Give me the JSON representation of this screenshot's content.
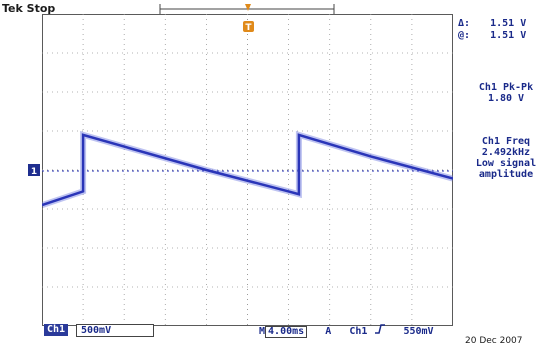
{
  "header": {
    "brand": "Tek",
    "run_state": "Stop"
  },
  "cursor_readout": {
    "delta_label": "Δ:",
    "delta_value": "1.51 V",
    "at_label": "@:",
    "at_value": "1.51 V"
  },
  "measurements": [
    {
      "label": "Ch1 Pk-Pk",
      "value": "1.80 V"
    },
    {
      "label": "Ch1 Freq",
      "value": "2.492kHz",
      "note": [
        "Low signal",
        "amplitude"
      ]
    }
  ],
  "channel": {
    "badge": "Ch1",
    "scale": "500mV",
    "marker": "1"
  },
  "timebase": {
    "prefix": "M",
    "value": "4.00ms",
    "trigger_prefix": "A",
    "trigger_source": "Ch1",
    "trigger_slope_icon": "rising-edge-icon",
    "trigger_level": "550mV"
  },
  "footer": {
    "date": "20 Dec 2007"
  },
  "trigger_marker": "T",
  "colors": {
    "trace": "#2a35b8",
    "graticule": "#9a9a9a",
    "text": "#1a2a8a"
  },
  "chart_data": {
    "type": "line",
    "series": [
      {
        "points": [
          {
            "t": 0.0,
            "v": -0.9
          },
          {
            "t": 1.0,
            "v": -0.55
          },
          {
            "t": 1.0,
            "v": 0.9
          },
          {
            "t": 2.0,
            "v": 0.6
          },
          {
            "t": 4.0,
            "v": 0.0
          },
          {
            "t": 6.0,
            "v": -0.55
          },
          {
            "t": 6.25,
            "v": -0.62
          },
          {
            "t": 6.25,
            "v": 0.9
          },
          {
            "t": 8.0,
            "v": 0.35
          },
          {
            "t": 10.0,
            "v": -0.22
          }
        ]
      }
    ],
    "xlim": [
      0,
      10
    ],
    "ylim": [
      -4,
      4
    ],
    "grid": true
  }
}
